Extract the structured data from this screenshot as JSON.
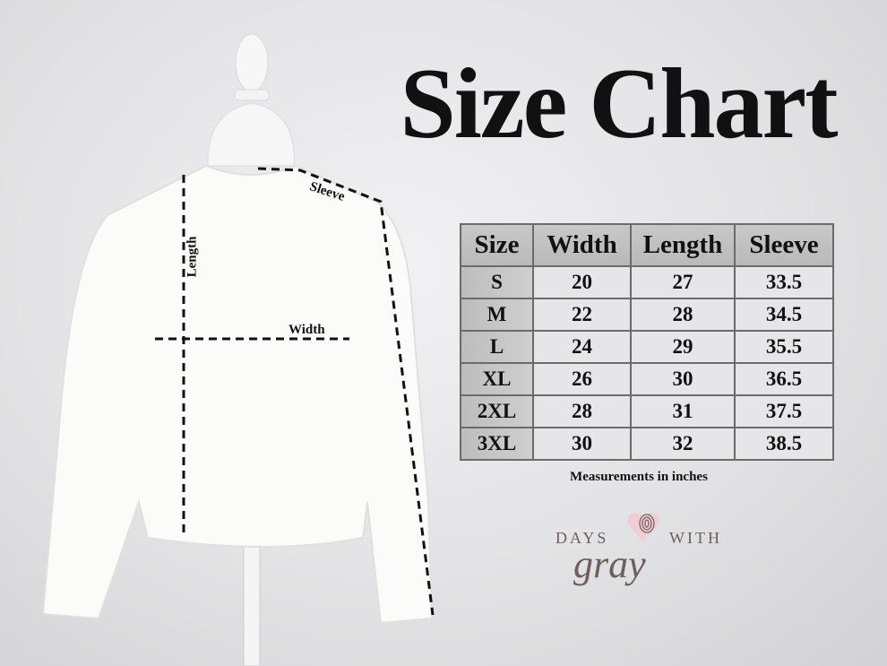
{
  "title": "Size Chart",
  "diagram_labels": {
    "length": "Length",
    "width": "Width",
    "sleeve": "Sleeve"
  },
  "table": {
    "headers": [
      "Size",
      "Width",
      "Length",
      "Sleeve"
    ],
    "rows": [
      [
        "S",
        "20",
        "27",
        "33.5"
      ],
      [
        "M",
        "22",
        "28",
        "34.5"
      ],
      [
        "L",
        "24",
        "29",
        "35.5"
      ],
      [
        "XL",
        "26",
        "30",
        "36.5"
      ],
      [
        "2XL",
        "28",
        "31",
        "37.5"
      ],
      [
        "3XL",
        "30",
        "32",
        "38.5"
      ]
    ]
  },
  "note": "Measurements in inches",
  "logo": {
    "top_left": "DAYS",
    "top_right": "WITH",
    "script": "gray",
    "accent_color": "#f2cdd3",
    "text_color": "#6d5f5b"
  }
}
